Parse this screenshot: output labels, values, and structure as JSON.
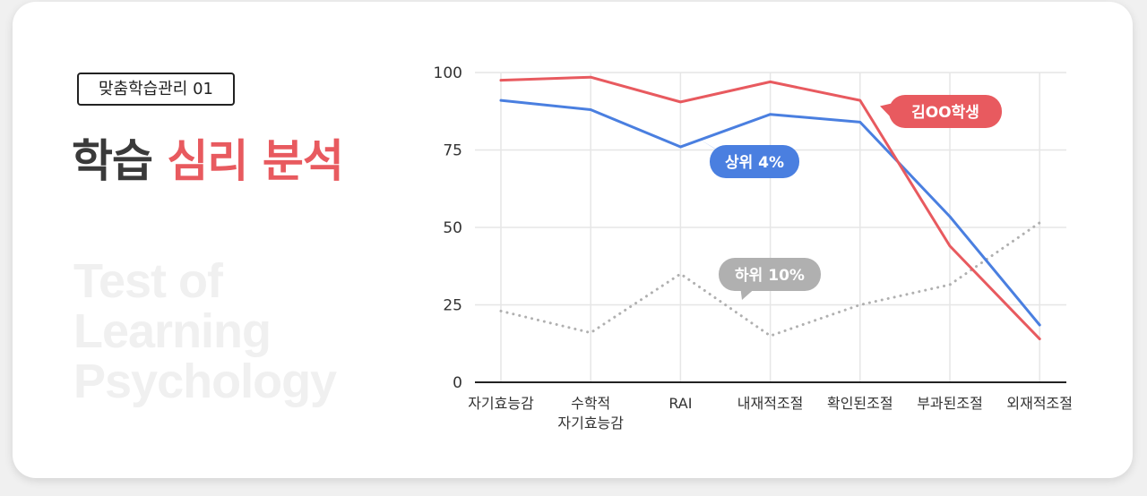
{
  "header": {
    "badge": "맞춤학습관리 01",
    "title_part1": "학습",
    "title_part2": "심리 분석",
    "background_lines": [
      "Test of",
      "Learning",
      "Psychology"
    ]
  },
  "colors": {
    "accent_red": "#e85a5f",
    "accent_blue": "#4a7fe0",
    "neutral_gray": "#b0b0b0"
  },
  "chart_data": {
    "type": "line",
    "categories": [
      [
        "자기효능감"
      ],
      [
        "수학적",
        "자기효능감"
      ],
      [
        "RAI"
      ],
      [
        "내재적조절"
      ],
      [
        "확인된조절"
      ],
      [
        "부과된조절"
      ],
      [
        "외재적조절"
      ]
    ],
    "ylim": [
      0,
      100
    ],
    "yticks": [
      0,
      25,
      50,
      75,
      100
    ],
    "grid": true,
    "series": [
      {
        "name": "김OO학생",
        "color": "#e85a5f",
        "style": "solid",
        "values": [
          97.5,
          98.5,
          90.5,
          97,
          91,
          44,
          14
        ]
      },
      {
        "name": "상위 4%",
        "color": "#4a7fe0",
        "style": "solid",
        "values": [
          91,
          88,
          76,
          86.5,
          84,
          53.5,
          18.5
        ]
      },
      {
        "name": "하위 10%",
        "color": "#b0b0b0",
        "style": "dotted",
        "values": [
          23,
          16,
          35,
          15,
          25,
          31.5,
          51.5
        ]
      }
    ]
  }
}
